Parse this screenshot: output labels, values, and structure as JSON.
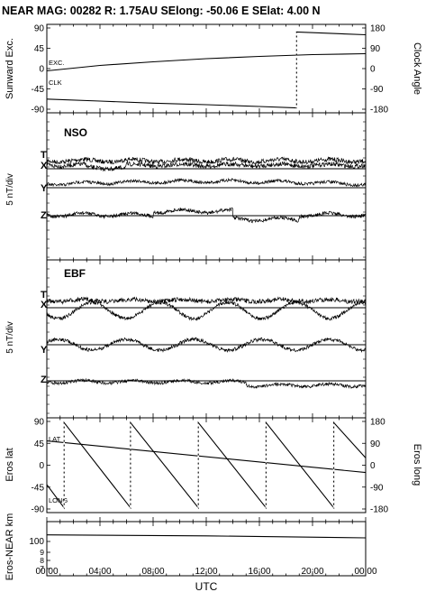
{
  "header": {
    "title": "NEAR MAG: 00282  R: 1.75AU  SElong:  -50.06 E  SElat:    4.00 N"
  },
  "panels": {
    "p1": {
      "left_label": "Sunward Exc.",
      "right_label": "Clock Angle",
      "left_ticks": [
        "90",
        "45",
        "0",
        "-45",
        "-90"
      ],
      "right_ticks": [
        "180",
        "90",
        "0",
        "-90",
        "-180"
      ],
      "curve_labels": [
        "EXC.",
        "CLK"
      ]
    },
    "p2": {
      "name": "NSO",
      "traces": [
        "T",
        "X",
        "Y",
        "Z"
      ]
    },
    "p23_ylabel": "5 nT/div",
    "p3": {
      "name": "EBF",
      "traces": [
        "T",
        "X",
        "Y",
        "Z"
      ]
    },
    "p4": {
      "left_label": "Eros lat",
      "right_label": "Eros long",
      "left_ticks": [
        "90",
        "45",
        "0",
        "-45",
        "-90"
      ],
      "right_ticks": [
        "180",
        "90",
        "0",
        "-90",
        "-180"
      ],
      "curve_labels": [
        "LAT",
        "LONG"
      ]
    },
    "p5": {
      "left_label": "Eros-NEAR km",
      "ticks": [
        "100",
        "9",
        "8",
        "7"
      ]
    }
  },
  "xaxis": {
    "label": "UTC",
    "ticks": [
      "00:00",
      "04:00",
      "08:00",
      "12:00",
      "16:00",
      "20:00",
      "00:00"
    ]
  },
  "chart_data": {
    "type": "line",
    "x_unit": "hours UTC",
    "xlim": [
      0,
      24
    ],
    "series": [
      {
        "panel": "p1",
        "name": "EXC.",
        "axis": "left",
        "ylim": [
          -90,
          90
        ],
        "x": [
          0,
          4,
          8,
          12,
          16,
          20,
          24
        ],
        "values": [
          -5,
          7,
          15,
          22,
          27,
          31,
          33
        ]
      },
      {
        "panel": "p1",
        "name": "CLK",
        "axis": "right",
        "ylim": [
          -180,
          180
        ],
        "x": [
          0,
          4,
          8,
          12,
          16,
          18.8,
          18.8,
          24
        ],
        "values": [
          -135,
          -144,
          -153,
          -160,
          -168,
          -174,
          162,
          150
        ]
      },
      {
        "panel": "p4",
        "name": "LAT",
        "axis": "left",
        "ylim": [
          -90,
          90
        ],
        "x": [
          0,
          24
        ],
        "values": [
          50,
          -15
        ]
      },
      {
        "panel": "p4",
        "name": "LONG",
        "axis": "right",
        "ylim": [
          -180,
          180
        ],
        "x": [
          0,
          1.3,
          1.3,
          6.3,
          6.3,
          11.4,
          11.4,
          16.5,
          16.5,
          21.6,
          21.6,
          24
        ],
        "values": [
          -80,
          -175,
          175,
          -175,
          175,
          -175,
          175,
          -175,
          175,
          -175,
          175,
          30
        ]
      },
      {
        "panel": "p5",
        "name": "Eros-NEAR km",
        "axis": "left",
        "x": [
          0,
          12,
          24
        ],
        "values": [
          103,
          102,
          100
        ]
      }
    ]
  }
}
